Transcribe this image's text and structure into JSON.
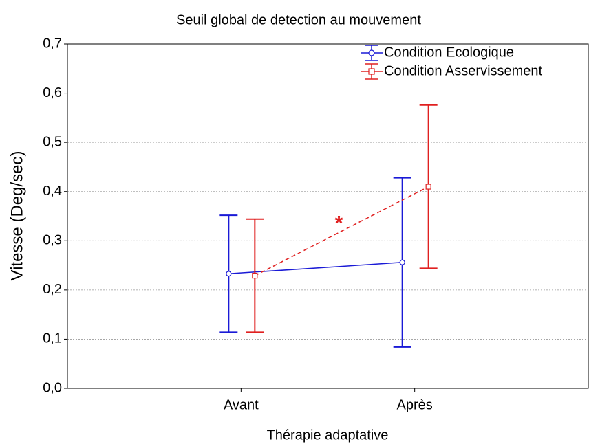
{
  "chart_data": {
    "type": "line",
    "title": "Seuil global de detection au mouvement",
    "xlabel": "Thérapie adaptative",
    "ylabel": "Vitesse (Deg/sec)",
    "categories": [
      "Avant",
      "Après"
    ],
    "ylim": [
      0,
      0.7
    ],
    "yticks": [
      {
        "value": 0,
        "label": "0,0"
      },
      {
        "value": 0.1,
        "label": "0,1"
      },
      {
        "value": 0.2,
        "label": "0,2"
      },
      {
        "value": 0.3,
        "label": "0,3"
      },
      {
        "value": 0.4,
        "label": "0,4"
      },
      {
        "value": 0.5,
        "label": "0,5"
      },
      {
        "value": 0.6,
        "label": "0,6"
      },
      {
        "value": 0.7,
        "label": "0,7"
      }
    ],
    "grid": true,
    "legend": "upper right",
    "annotation": "*",
    "annotation_color": "#e02020",
    "series": [
      {
        "name": "Condition Ecologique",
        "color": "#1a1ad6",
        "marker": "circle",
        "linestyle": "solid",
        "values": [
          0.233,
          0.256
        ],
        "errors": [
          0.119,
          0.172
        ]
      },
      {
        "name": "Condition Asservissement",
        "color": "#e02020",
        "marker": "square",
        "linestyle": "dashed",
        "values": [
          0.229,
          0.41
        ],
        "errors": [
          0.115,
          0.166
        ]
      }
    ]
  }
}
